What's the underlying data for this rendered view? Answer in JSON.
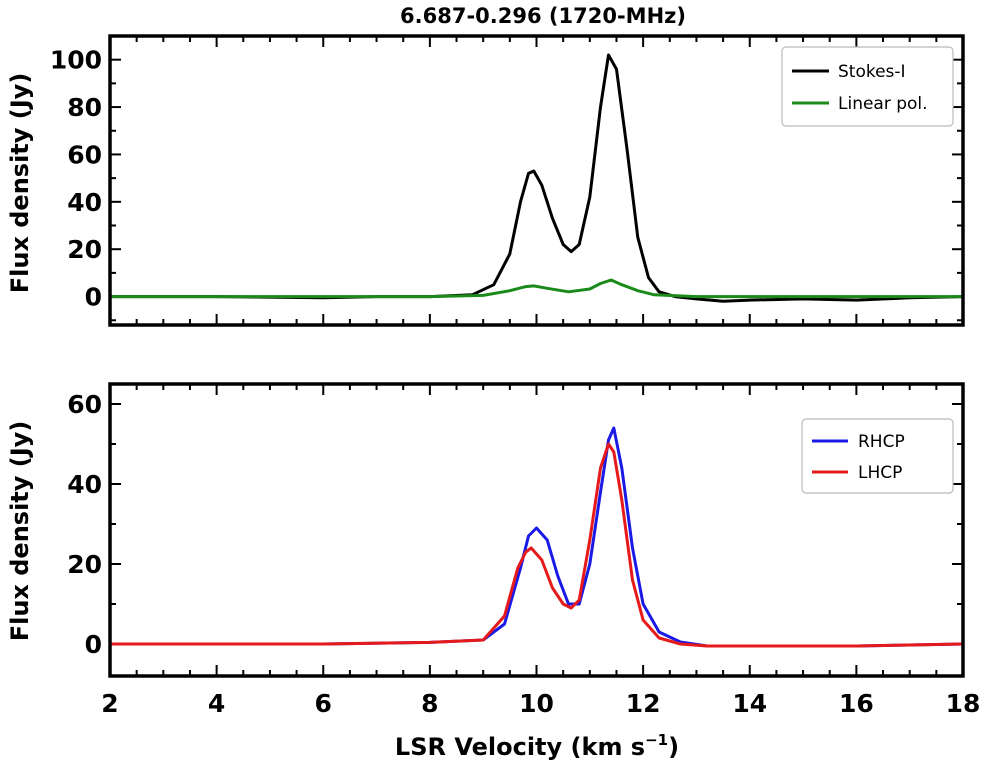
{
  "figure": {
    "title": "6.687-0.296 (1720-MHz)",
    "xlabel_main": "LSR Velocity (km s",
    "xlabel_exp": "−1",
    "xlabel_close": ")"
  },
  "chart_data": [
    {
      "type": "line",
      "title": "6.687-0.296 (1720-MHz)",
      "xlabel": "",
      "ylabel": "Flux density (Jy)",
      "xlim": [
        2,
        18
      ],
      "ylim": [
        -12,
        110
      ],
      "yticks": [
        0,
        20,
        40,
        60,
        80,
        100
      ],
      "yticks_text": [
        "0",
        "20",
        "40",
        "60",
        "80",
        "100"
      ],
      "grid": false,
      "legend_position": "top-right",
      "series": [
        {
          "name": "Stokes-I",
          "color": "#000000",
          "x": [
            2,
            4,
            6,
            7,
            8,
            8.8,
            9.2,
            9.5,
            9.7,
            9.85,
            9.95,
            10.1,
            10.3,
            10.5,
            10.65,
            10.8,
            11.0,
            11.2,
            11.35,
            11.5,
            11.7,
            11.9,
            12.1,
            12.3,
            12.6,
            13.0,
            13.5,
            14,
            15,
            16,
            17,
            18
          ],
          "y": [
            0,
            0,
            -0.5,
            0,
            0,
            0.8,
            5,
            18,
            40,
            52,
            53,
            47,
            33,
            22,
            19,
            22,
            42,
            80,
            102,
            96,
            62,
            25,
            8,
            2,
            0,
            -1,
            -2,
            -1.5,
            -1,
            -1.5,
            -0.5,
            0
          ]
        },
        {
          "name": "Linear pol.",
          "color": "#1a8a1a",
          "x": [
            2,
            6,
            8,
            9.0,
            9.5,
            9.8,
            9.95,
            10.2,
            10.6,
            11.0,
            11.2,
            11.4,
            11.6,
            11.9,
            12.2,
            13,
            14,
            16,
            18
          ],
          "y": [
            0,
            0,
            0,
            0.5,
            2.5,
            4.2,
            4.5,
            3.5,
            2,
            3.2,
            5.5,
            7,
            5,
            2.5,
            0.8,
            0,
            0,
            0,
            0
          ]
        }
      ]
    },
    {
      "type": "line",
      "xlabel": "LSR Velocity (km s−1)",
      "ylabel": "Flux density (Jy)",
      "xlim": [
        2,
        18
      ],
      "ylim": [
        -8,
        65
      ],
      "xticks": [
        2,
        4,
        6,
        8,
        10,
        12,
        14,
        16,
        18
      ],
      "xticks_text": [
        "2",
        "4",
        "6",
        "8",
        "10",
        "12",
        "14",
        "16",
        "18"
      ],
      "yticks": [
        0,
        20,
        40,
        60
      ],
      "yticks_text": [
        "0",
        "20",
        "40",
        "60"
      ],
      "grid": false,
      "legend_position": "top-right",
      "series": [
        {
          "name": "RHCP",
          "color": "#1a1ae6",
          "x": [
            2,
            6,
            8,
            9.0,
            9.4,
            9.7,
            9.85,
            10.0,
            10.2,
            10.4,
            10.6,
            10.8,
            11.0,
            11.2,
            11.35,
            11.45,
            11.6,
            11.8,
            12.0,
            12.3,
            12.7,
            13.2,
            14,
            16,
            18
          ],
          "y": [
            0,
            0,
            0.4,
            1,
            5,
            19,
            27,
            29,
            26,
            17,
            10,
            10,
            20,
            38,
            51,
            54,
            44,
            24,
            10,
            3,
            0.5,
            -0.5,
            -0.5,
            -0.5,
            0
          ]
        },
        {
          "name": "LHCP",
          "color": "#e61a1a",
          "x": [
            2,
            6,
            8,
            9.0,
            9.4,
            9.65,
            9.8,
            9.9,
            10.1,
            10.3,
            10.5,
            10.65,
            10.8,
            11.0,
            11.2,
            11.35,
            11.45,
            11.6,
            11.8,
            12.0,
            12.3,
            12.7,
            13.2,
            14,
            16,
            18
          ],
          "y": [
            0,
            0,
            0.4,
            1,
            7,
            19,
            23,
            24,
            21,
            14,
            10,
            9,
            11,
            26,
            44,
            50,
            48,
            36,
            16,
            6,
            1.5,
            0,
            -0.5,
            -0.5,
            -0.5,
            0
          ]
        }
      ]
    }
  ]
}
